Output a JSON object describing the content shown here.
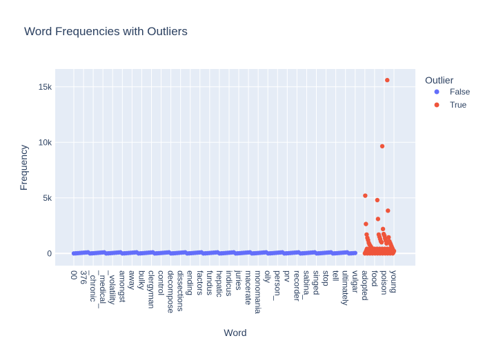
{
  "chart_data": {
    "type": "scatter",
    "title": "Word Frequencies with Outliers",
    "xlabel": "Word",
    "ylabel": "Frequency",
    "ylim": [
      -1100,
      16600
    ],
    "y_ticks": [
      0,
      5000,
      10000,
      15000
    ],
    "y_tick_labels": [
      "0",
      "5k",
      "10k",
      "15k"
    ],
    "x_tick_labels": [
      "00",
      "376",
      "_chronic",
      "_medical_",
      "_volatility",
      "amongst",
      "away",
      "bulky",
      "clergyman",
      "control",
      "decompose",
      "dissections",
      "ending",
      "factors",
      "fundus",
      "hepatic",
      "indicus",
      "juries",
      "macerate",
      "monomania",
      "oily",
      "person_",
      "prv",
      "recorder",
      "sabina_",
      "singed",
      "stop",
      "tell",
      "ultimately",
      "vulgar",
      "adopted",
      "food",
      "poison",
      "young"
    ],
    "grid": true,
    "legend": {
      "title": "Outlier",
      "position": "top-right",
      "entries": [
        {
          "name": "False",
          "color": "#636efa"
        },
        {
          "name": "True",
          "color": "#ef553b"
        }
      ]
    },
    "colors": {
      "False": "#636efa",
      "True": "#ef553b",
      "plot_bg": "#e5ecf6"
    },
    "series": [
      {
        "name": "False",
        "x_range": [
          "00",
          "vulgar"
        ],
        "y_values": [
          0,
          10,
          25,
          40,
          55,
          70,
          85,
          100
        ]
      },
      {
        "name": "True",
        "x_range": [
          "adopted",
          "young"
        ],
        "y_values": [
          5200,
          2650,
          1700,
          1400,
          1200,
          950,
          800,
          700,
          600,
          500,
          450,
          400,
          350,
          300,
          250,
          200,
          150,
          4800,
          3100,
          1700,
          1500,
          1300,
          1100,
          1000,
          9650,
          2200,
          1750,
          1600,
          1350,
          1150,
          900,
          15600,
          3850,
          1450,
          1100,
          950,
          800,
          650,
          500,
          350,
          200
        ]
      }
    ]
  }
}
